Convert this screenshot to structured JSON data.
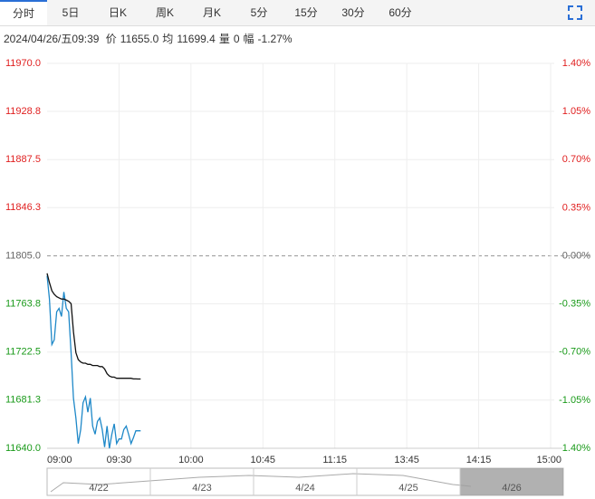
{
  "tabs": [
    "分时",
    "5日",
    "日K",
    "周K",
    "月K",
    "5分",
    "15分",
    "30分",
    "60分"
  ],
  "info": {
    "time": "2024/04/26/五09:39",
    "items": [
      {
        "label": "价",
        "value": "11655.0"
      },
      {
        "label": "均",
        "value": "11699.4"
      },
      {
        "label": "量",
        "value": "0"
      },
      {
        "label": "幅",
        "value": "-1.27%"
      }
    ]
  },
  "chart_data": {
    "type": "line",
    "x": [
      "09:00",
      "09:01",
      "09:02",
      "09:03",
      "09:04",
      "09:05",
      "09:06",
      "09:07",
      "09:08",
      "09:09",
      "09:10",
      "09:11",
      "09:12",
      "09:13",
      "09:14",
      "09:15",
      "09:16",
      "09:17",
      "09:18",
      "09:19",
      "09:20",
      "09:21",
      "09:22",
      "09:23",
      "09:24",
      "09:25",
      "09:26",
      "09:27",
      "09:28",
      "09:29",
      "09:30",
      "09:31",
      "09:32",
      "09:33",
      "09:34",
      "09:35",
      "09:36",
      "09:37",
      "09:38",
      "09:39"
    ],
    "series": [
      {
        "color": "#1e88c8",
        "values": [
          11788,
          11768,
          11729,
          11733,
          11757,
          11760,
          11753,
          11774,
          11760,
          11757,
          11722,
          11683,
          11666,
          11644,
          11656,
          11679,
          11684,
          11671,
          11683,
          11659,
          11652,
          11663,
          11666,
          11656,
          11641,
          11659,
          11640,
          11652,
          11661,
          11644,
          11648,
          11648,
          11656,
          11659,
          11652,
          11644,
          11649,
          11655,
          11655,
          11655
        ]
      },
      {
        "color": "#111111",
        "values": [
          11790,
          11782,
          11775,
          11772,
          11770,
          11769,
          11768,
          11768,
          11767,
          11766,
          11764,
          11740,
          11722,
          11716,
          11714,
          11713,
          11713,
          11712,
          11712,
          11711,
          11711,
          11711,
          11710,
          11710,
          11708,
          11704,
          11702,
          11701,
          11701,
          11700,
          11700,
          11700,
          11700,
          11700,
          11700,
          11700,
          11699.5,
          11699.5,
          11699.4,
          11699.4
        ]
      }
    ],
    "xticks": [
      "09:00",
      "09:30",
      "10:00",
      "10:45",
      "11:15",
      "13:45",
      "14:15",
      "15:00"
    ],
    "ylim": [
      11640,
      11970
    ],
    "yticks": [
      {
        "value": 11970,
        "label": "11970.0"
      },
      11928.8,
      11887.5,
      11846.3,
      {
        "value": 11805,
        "label": "11805.0"
      },
      11763.8,
      11722.5,
      11681.3,
      {
        "value": 11640,
        "label": "11640.0"
      }
    ],
    "reference_line": 11805,
    "y2lim": [
      -1.4,
      1.4
    ],
    "y2ticks": [
      {
        "value": 1.4,
        "label": "1.40%"
      },
      {
        "value": 1.05,
        "label": "1.05%"
      },
      {
        "value": 0.7,
        "label": "0.70%"
      },
      {
        "value": 0.35,
        "label": "0.35%"
      },
      {
        "value": 0,
        "label": "0.00%"
      },
      {
        "value": -0.35,
        "label": "-0.35%"
      },
      {
        "value": -0.7,
        "label": "-0.70%"
      },
      {
        "value": -1.05,
        "label": "-1.05%"
      },
      {
        "value": -1.4,
        "label": "-1.40%"
      }
    ],
    "grid": true
  },
  "navigator": {
    "labels": [
      "4/22",
      "4/23",
      "4/24",
      "4/25",
      "4/26"
    ]
  }
}
